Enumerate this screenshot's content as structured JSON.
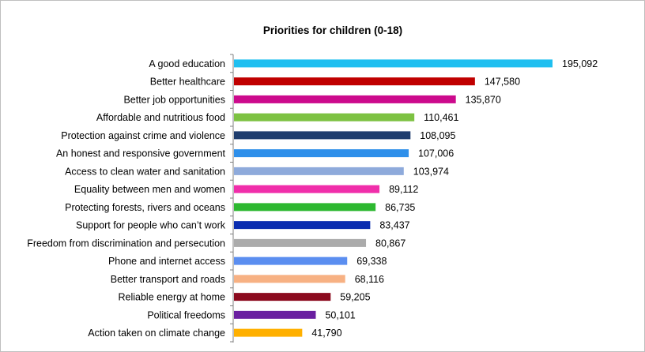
{
  "chart_data": {
    "type": "bar",
    "orientation": "horizontal",
    "title": "Priorities for children (0-18)",
    "xlabel": "",
    "ylabel": "",
    "grid": false,
    "legend": "none",
    "xlim": [
      0,
      200000
    ],
    "categories": [
      "A good education",
      "Better healthcare",
      "Better job opportunities",
      "Affordable and nutritious food",
      "Protection against crime and violence",
      "An honest and responsive government",
      "Access to clean water and sanitation",
      "Equality between men and women",
      "Protecting forests, rivers and oceans",
      "Support for people who can’t work",
      "Freedom from discrimination and persecution",
      "Phone and internet access",
      "Better transport and roads",
      "Reliable energy at home",
      "Political freedoms",
      "Action taken on climate change"
    ],
    "values": [
      195092,
      147580,
      135870,
      110461,
      108095,
      107006,
      103974,
      89112,
      86735,
      83437,
      80867,
      69338,
      68116,
      59205,
      50101,
      41790
    ],
    "value_labels": [
      "195,092",
      "147,580",
      "135,870",
      "110,461",
      "108,095",
      "107,006",
      "103,974",
      "89,112",
      "86,735",
      "83,437",
      "80,867",
      "69,338",
      "68,116",
      "59,205",
      "50,101",
      "41,790"
    ],
    "colors": [
      "#1FBFF0",
      "#C00000",
      "#CC0A8C",
      "#7DC242",
      "#1F3D6E",
      "#2E8FEA",
      "#8EAADB",
      "#F02EAA",
      "#2DB830",
      "#0A2DB0",
      "#ABABAB",
      "#5B8EF0",
      "#F7B183",
      "#8B0A1E",
      "#6A1FA0",
      "#FFB000"
    ]
  }
}
